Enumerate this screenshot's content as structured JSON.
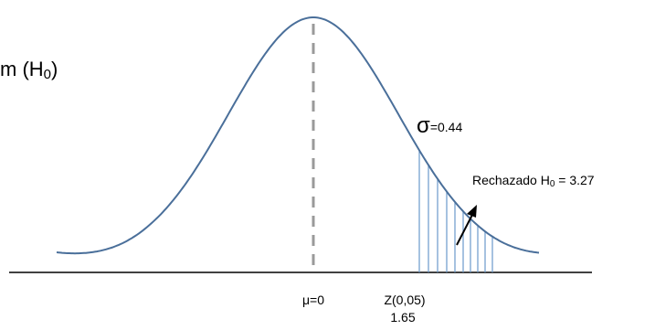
{
  "title_fragment": {
    "prefix": "m (H",
    "subscript": "0",
    "suffix": ")"
  },
  "sigma": {
    "symbol": "σ",
    "value": "=0.44"
  },
  "rejection_label": {
    "prefix": "Rechazado H",
    "subscript": "0",
    "suffix": " = 3.27"
  },
  "mu_label": "μ=0",
  "z_label": {
    "line1": "Z(0,05)",
    "line2": "1.65"
  },
  "colors": {
    "curve": "#4a6f9a",
    "mean_line": "#9a9a9a",
    "shading": "#6a9acc",
    "axis": "#000000",
    "arrow": "#000000"
  }
}
